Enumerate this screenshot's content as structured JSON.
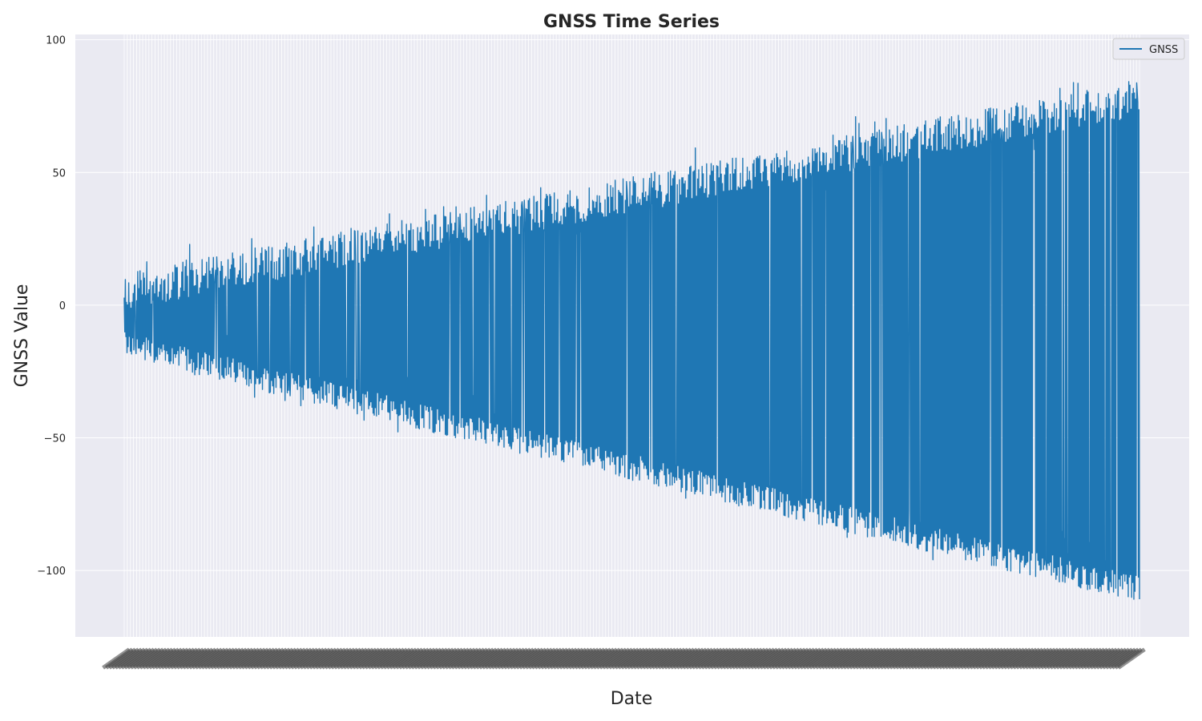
{
  "chart_data": {
    "type": "line",
    "title": "GNSS Time Series",
    "xlabel": "Date",
    "ylabel": "GNSS Value",
    "ylim": [
      -125,
      102
    ],
    "yticks": [
      100,
      50,
      0,
      -50,
      -100
    ],
    "ytick_labels": [
      "100",
      "50",
      "0",
      "−50",
      "−100"
    ],
    "grid": true,
    "legend": {
      "position": "top-right",
      "entries": [
        "GNSS"
      ]
    },
    "series": [
      {
        "name": "GNSS",
        "color": "#1f77b4",
        "x_count": 1800,
        "envelope_start": {
          "upper": 12,
          "lower": -20
        },
        "envelope_end": {
          "upper": 85,
          "lower": -112
        },
        "peak_upper": 91,
        "trough_lower": -115
      }
    ],
    "background_color": "#eaeaf2",
    "grid_color": "#ffffff"
  }
}
